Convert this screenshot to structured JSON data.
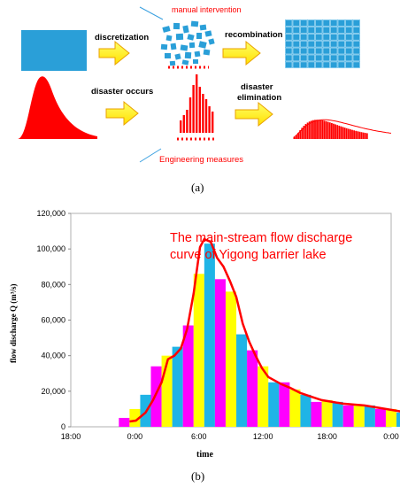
{
  "panel_a": {
    "labels": {
      "discretization": "discretization",
      "manual_intervention": "manual intervention",
      "recombination": "recombination",
      "disaster_occurs": "disaster occurs",
      "disaster_elimination_line1": "disaster",
      "disaster_elimination_line2": "elimination",
      "engineering_measures": "Engineering measures"
    },
    "caption": "(a)",
    "colors": {
      "block": "#2a9fd8",
      "arrow_fill": "#ffff00",
      "arrow_stroke": "#e8a000",
      "red": "#ff0000",
      "dots": "#ff0000",
      "pointer": "#3aa0e0"
    }
  },
  "panel_b": {
    "caption": "(b)",
    "chart_data": {
      "type": "bar",
      "title_line1": "The main-stream flow discharge",
      "title_line2": "curve of Yigong barrier lake",
      "xlabel": "time",
      "ylabel": "flow discharge Q (m³/s)",
      "ylim": [
        0,
        120000
      ],
      "y_ticks": [
        "0",
        "20,000",
        "40,000",
        "60,000",
        "80,000",
        "100,000",
        "120,000"
      ],
      "x_ticks": [
        "18:00",
        "0:00",
        "6:00",
        "12:00",
        "18:00",
        "0:00"
      ],
      "bar_colors": [
        "#ff00ff",
        "#ffff00",
        "#1fb4e6"
      ],
      "curve_color": "#ff0000",
      "bars": [
        5000,
        10000,
        18000,
        34000,
        40000,
        45000,
        57000,
        86000,
        103000,
        83000,
        76000,
        52000,
        43000,
        34000,
        25000,
        25000,
        21000,
        18000,
        14000,
        15000,
        14000,
        12000,
        12000,
        12000,
        10000,
        10000,
        8000,
        8000,
        5000
      ],
      "curve": [
        [
          0.0,
          3000
        ],
        [
          0.6,
          3500
        ],
        [
          1.5,
          8000
        ],
        [
          2.2,
          15000
        ],
        [
          3.0,
          25000
        ],
        [
          3.6,
          38000
        ],
        [
          4.2,
          40000
        ],
        [
          4.8,
          44000
        ],
        [
          5.4,
          55000
        ],
        [
          6.0,
          75000
        ],
        [
          6.6,
          101000
        ],
        [
          7.0,
          105500
        ],
        [
          7.6,
          104000
        ],
        [
          8.2,
          95000
        ],
        [
          8.8,
          90000
        ],
        [
          9.4,
          82000
        ],
        [
          10.0,
          73000
        ],
        [
          10.6,
          58000
        ],
        [
          11.2,
          48000
        ],
        [
          11.8,
          40000
        ],
        [
          12.4,
          33000
        ],
        [
          13.0,
          28000
        ],
        [
          13.6,
          26000
        ],
        [
          14.2,
          24000
        ],
        [
          15.0,
          22000
        ],
        [
          16.0,
          19000
        ],
        [
          17.0,
          17000
        ],
        [
          18.0,
          15000
        ],
        [
          19.0,
          14000
        ],
        [
          20.0,
          13000
        ],
        [
          21.0,
          12500
        ],
        [
          22.0,
          12000
        ],
        [
          23.0,
          11000
        ],
        [
          24.0,
          10000
        ],
        [
          25.0,
          9000
        ],
        [
          26.0,
          8000
        ],
        [
          27.0,
          7000
        ],
        [
          28.0,
          5000
        ],
        [
          28.8,
          2000
        ]
      ]
    }
  }
}
